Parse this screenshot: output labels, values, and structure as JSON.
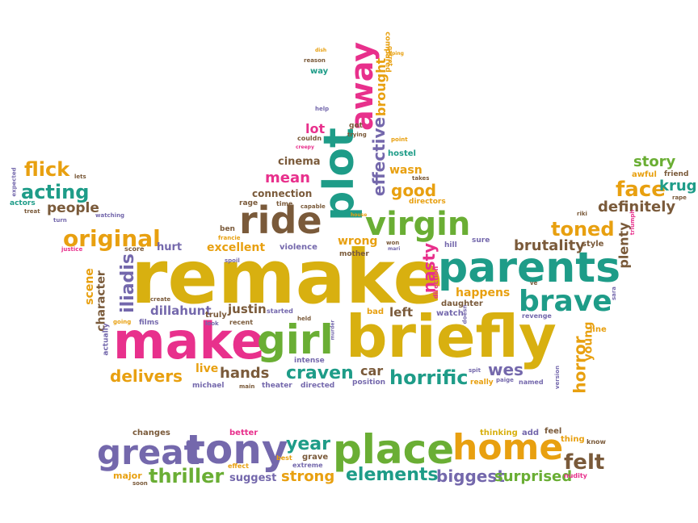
{
  "palette": {
    "orange": "#E8A010",
    "pink": "#E8308C",
    "teal": "#1E9C88",
    "green": "#6AAE34",
    "purple": "#7468AC",
    "brown": "#7A5A3A",
    "gold": "#D8B010"
  },
  "words": [
    {
      "text": "remake",
      "color": "gold"
    },
    {
      "text": "briefly",
      "color": "gold"
    },
    {
      "text": "make",
      "color": "pink"
    },
    {
      "text": "girl",
      "color": "green"
    },
    {
      "text": "parents",
      "color": "teal"
    },
    {
      "text": "plot",
      "color": "teal"
    },
    {
      "text": "away",
      "color": "pink"
    },
    {
      "text": "ride",
      "color": "brown"
    },
    {
      "text": "virgin",
      "color": "green"
    },
    {
      "text": "brave",
      "color": "teal"
    },
    {
      "text": "great",
      "color": "purple"
    },
    {
      "text": "tony",
      "color": "purple"
    },
    {
      "text": "place",
      "color": "green"
    },
    {
      "text": "home",
      "color": "orange"
    },
    {
      "text": "felt",
      "color": "brown"
    },
    {
      "text": "year",
      "color": "teal"
    },
    {
      "text": "thriller",
      "color": "green"
    },
    {
      "text": "elements",
      "color": "teal"
    },
    {
      "text": "biggest",
      "color": "purple"
    },
    {
      "text": "surprised",
      "color": "green"
    },
    {
      "text": "strong",
      "color": "orange"
    },
    {
      "text": "suggest",
      "color": "purple"
    },
    {
      "text": "original",
      "color": "orange"
    },
    {
      "text": "acting",
      "color": "teal"
    },
    {
      "text": "flick",
      "color": "orange"
    },
    {
      "text": "people",
      "color": "brown"
    },
    {
      "text": "face",
      "color": "orange"
    },
    {
      "text": "krug",
      "color": "teal"
    },
    {
      "text": "story",
      "color": "green"
    },
    {
      "text": "definitely",
      "color": "brown"
    },
    {
      "text": "toned",
      "color": "orange"
    },
    {
      "text": "brutality",
      "color": "brown"
    },
    {
      "text": "horrific",
      "color": "teal"
    },
    {
      "text": "craven",
      "color": "teal"
    },
    {
      "text": "hands",
      "color": "brown"
    },
    {
      "text": "delivers",
      "color": "orange"
    },
    {
      "text": "dillahunt",
      "color": "purple"
    },
    {
      "text": "iliadis",
      "color": "purple"
    },
    {
      "text": "wes",
      "color": "purple"
    },
    {
      "text": "horror",
      "color": "orange"
    },
    {
      "text": "good",
      "color": "orange"
    },
    {
      "text": "mean",
      "color": "pink"
    },
    {
      "text": "nasty",
      "color": "pink"
    },
    {
      "text": "effective",
      "color": "purple"
    },
    {
      "text": "brought",
      "color": "orange"
    },
    {
      "text": "lot",
      "color": "pink"
    },
    {
      "text": "cinema",
      "color": "brown"
    },
    {
      "text": "excellent",
      "color": "orange"
    },
    {
      "text": "wrong",
      "color": "orange"
    },
    {
      "text": "justin",
      "color": "brown"
    },
    {
      "text": "happens",
      "color": "orange"
    },
    {
      "text": "plenty",
      "color": "brown"
    },
    {
      "text": "young",
      "color": "orange"
    },
    {
      "text": "car",
      "color": "brown"
    },
    {
      "text": "live",
      "color": "orange"
    },
    {
      "text": "left",
      "color": "brown"
    },
    {
      "text": "scene",
      "color": "orange"
    },
    {
      "text": "character",
      "color": "brown"
    },
    {
      "text": "connection",
      "color": "brown"
    },
    {
      "text": "wasn",
      "color": "orange"
    },
    {
      "text": "hurt",
      "color": "purple"
    },
    {
      "text": "changes",
      "color": "brown"
    },
    {
      "text": "better",
      "color": "pink"
    },
    {
      "text": "thinking",
      "color": "gold"
    },
    {
      "text": "add",
      "color": "purple"
    },
    {
      "text": "feel",
      "color": "brown"
    },
    {
      "text": "thing",
      "color": "orange"
    },
    {
      "text": "know",
      "color": "brown"
    },
    {
      "text": "major",
      "color": "orange"
    },
    {
      "text": "effect",
      "color": "orange"
    },
    {
      "text": "best",
      "color": "orange"
    },
    {
      "text": "grave",
      "color": "brown"
    },
    {
      "text": "extreme",
      "color": "purple"
    },
    {
      "text": "nudity",
      "color": "pink"
    },
    {
      "text": "soon",
      "color": "brown"
    },
    {
      "text": "hostel",
      "color": "teal"
    },
    {
      "text": "directors",
      "color": "orange"
    },
    {
      "text": "capable",
      "color": "brown"
    },
    {
      "text": "rage",
      "color": "brown"
    },
    {
      "text": "time",
      "color": "brown"
    },
    {
      "text": "ben",
      "color": "brown"
    },
    {
      "text": "francie",
      "color": "orange"
    },
    {
      "text": "violence",
      "color": "purple"
    },
    {
      "text": "mother",
      "color": "brown"
    },
    {
      "text": "hill",
      "color": "purple"
    },
    {
      "text": "sure",
      "color": "purple"
    },
    {
      "text": "style",
      "color": "brown"
    },
    {
      "text": "daughter",
      "color": "brown"
    },
    {
      "text": "watch",
      "color": "purple"
    },
    {
      "text": "bad",
      "color": "orange"
    },
    {
      "text": "held",
      "color": "brown"
    },
    {
      "text": "started",
      "color": "purple"
    },
    {
      "text": "truly",
      "color": "brown"
    },
    {
      "text": "recent",
      "color": "brown"
    },
    {
      "text": "look",
      "color": "purple"
    },
    {
      "text": "films",
      "color": "purple"
    },
    {
      "text": "going",
      "color": "orange"
    },
    {
      "text": "create",
      "color": "brown"
    },
    {
      "text": "actually",
      "color": "purple"
    },
    {
      "text": "intense",
      "color": "purple"
    },
    {
      "text": "michael",
      "color": "purple"
    },
    {
      "text": "main",
      "color": "brown"
    },
    {
      "text": "theater",
      "color": "purple"
    },
    {
      "text": "directed",
      "color": "purple"
    },
    {
      "text": "position",
      "color": "purple"
    },
    {
      "text": "spit",
      "color": "purple"
    },
    {
      "text": "really",
      "color": "orange"
    },
    {
      "text": "paige",
      "color": "purple"
    },
    {
      "text": "named",
      "color": "purple"
    },
    {
      "text": "revenge",
      "color": "purple"
    },
    {
      "text": "line",
      "color": "orange"
    },
    {
      "text": "version",
      "color": "purple"
    },
    {
      "text": "sara",
      "color": "purple"
    },
    {
      "text": "ve",
      "color": "brown"
    },
    {
      "text": "riki",
      "color": "brown"
    },
    {
      "text": "triumph",
      "color": "pink"
    },
    {
      "text": "rape",
      "color": "brown"
    },
    {
      "text": "friend",
      "color": "brown"
    },
    {
      "text": "awful",
      "color": "orange"
    },
    {
      "text": "expected",
      "color": "purple"
    },
    {
      "text": "lets",
      "color": "brown"
    },
    {
      "text": "actors",
      "color": "teal"
    },
    {
      "text": "treat",
      "color": "brown"
    },
    {
      "text": "turn",
      "color": "purple"
    },
    {
      "text": "watching",
      "color": "purple"
    },
    {
      "text": "justice",
      "color": "pink"
    },
    {
      "text": "score",
      "color": "brown"
    },
    {
      "text": "reason",
      "color": "brown"
    },
    {
      "text": "way",
      "color": "teal"
    },
    {
      "text": "dish",
      "color": "orange"
    },
    {
      "text": "help",
      "color": "purple"
    },
    {
      "text": "couldn",
      "color": "brown"
    },
    {
      "text": "creepy",
      "color": "pink"
    },
    {
      "text": "got",
      "color": "brown"
    },
    {
      "text": "trying",
      "color": "brown"
    },
    {
      "text": "point",
      "color": "orange"
    },
    {
      "text": "takes",
      "color": "brown"
    },
    {
      "text": "doesn",
      "color": "purple"
    },
    {
      "text": "direction",
      "color": "pink"
    },
    {
      "text": "murder",
      "color": "purple"
    },
    {
      "text": "won",
      "color": "brown"
    },
    {
      "text": "mari",
      "color": "purple"
    },
    {
      "text": "spoil",
      "color": "purple"
    },
    {
      "text": "house",
      "color": "orange"
    },
    {
      "text": "compared",
      "color": "orange"
    },
    {
      "text": "garret",
      "color": "orange"
    },
    {
      "text": "raping",
      "color": "orange"
    }
  ]
}
